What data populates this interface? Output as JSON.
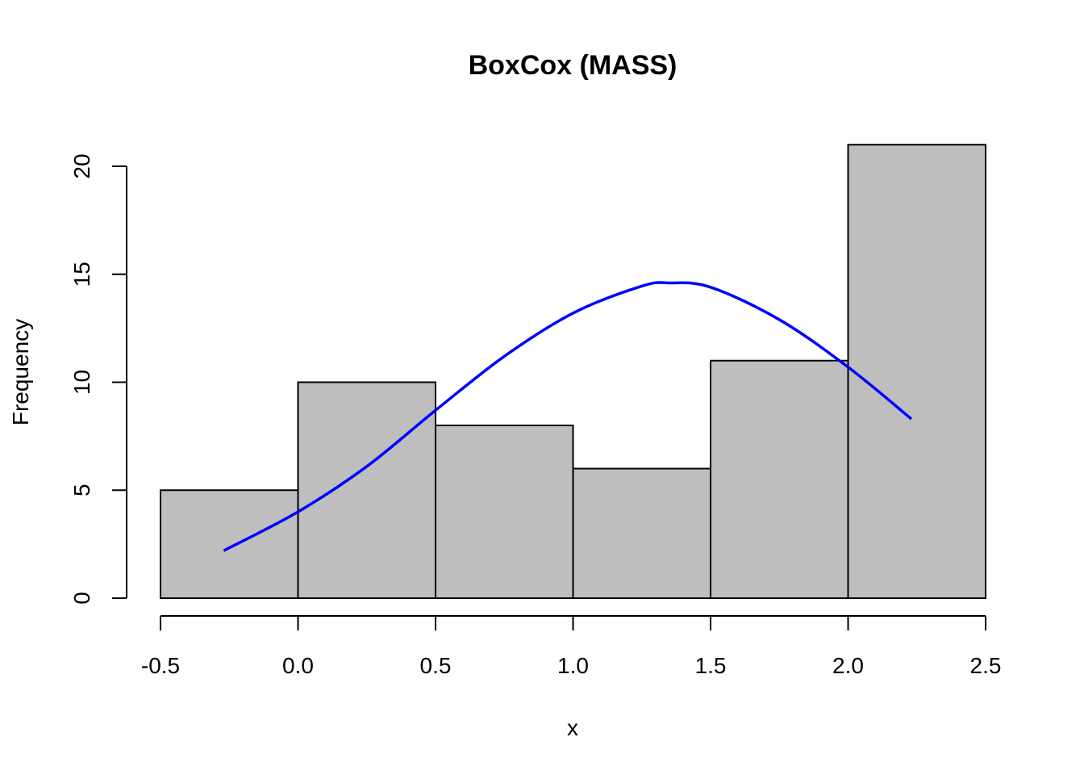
{
  "chart_data": {
    "type": "bar",
    "subtype": "histogram",
    "title": "BoxCox (MASS)",
    "xlabel": "x",
    "ylabel": "Frequency",
    "bins": [
      {
        "start": -0.5,
        "end": 0.0,
        "count": 5
      },
      {
        "start": 0.0,
        "end": 0.5,
        "count": 10
      },
      {
        "start": 0.5,
        "end": 1.0,
        "count": 8
      },
      {
        "start": 1.0,
        "end": 1.5,
        "count": 6
      },
      {
        "start": 1.5,
        "end": 2.0,
        "count": 11
      },
      {
        "start": 2.0,
        "end": 2.5,
        "count": 21
      }
    ],
    "xlim": [
      -0.5,
      2.5
    ],
    "ylim": [
      0,
      21
    ],
    "x_ticks": [
      -0.5,
      0.0,
      0.5,
      1.0,
      1.5,
      2.0,
      2.5
    ],
    "x_tick_labels": [
      "-0.5",
      "0.0",
      "0.5",
      "1.0",
      "1.5",
      "2.0",
      "2.5"
    ],
    "y_ticks": [
      0,
      5,
      10,
      15,
      20
    ],
    "y_tick_labels": [
      "0",
      "5",
      "10",
      "15",
      "20"
    ],
    "bar_color": "#bebebe",
    "bar_border_color": "#000000",
    "overlay_curve": {
      "type": "normal-density",
      "color": "#0000ff",
      "x_range": [
        -0.27,
        2.23
      ],
      "peak_x": 1.35,
      "peak_y": 14.6,
      "points": [
        [
          -0.27,
          2.2
        ],
        [
          0.0,
          4.0
        ],
        [
          0.25,
          6.1
        ],
        [
          0.5,
          8.7
        ],
        [
          0.75,
          11.2
        ],
        [
          1.0,
          13.2
        ],
        [
          1.25,
          14.45
        ],
        [
          1.35,
          14.6
        ],
        [
          1.5,
          14.4
        ],
        [
          1.75,
          12.9
        ],
        [
          2.0,
          10.7
        ],
        [
          2.23,
          8.3
        ]
      ]
    },
    "grid": false,
    "legend": "none"
  }
}
